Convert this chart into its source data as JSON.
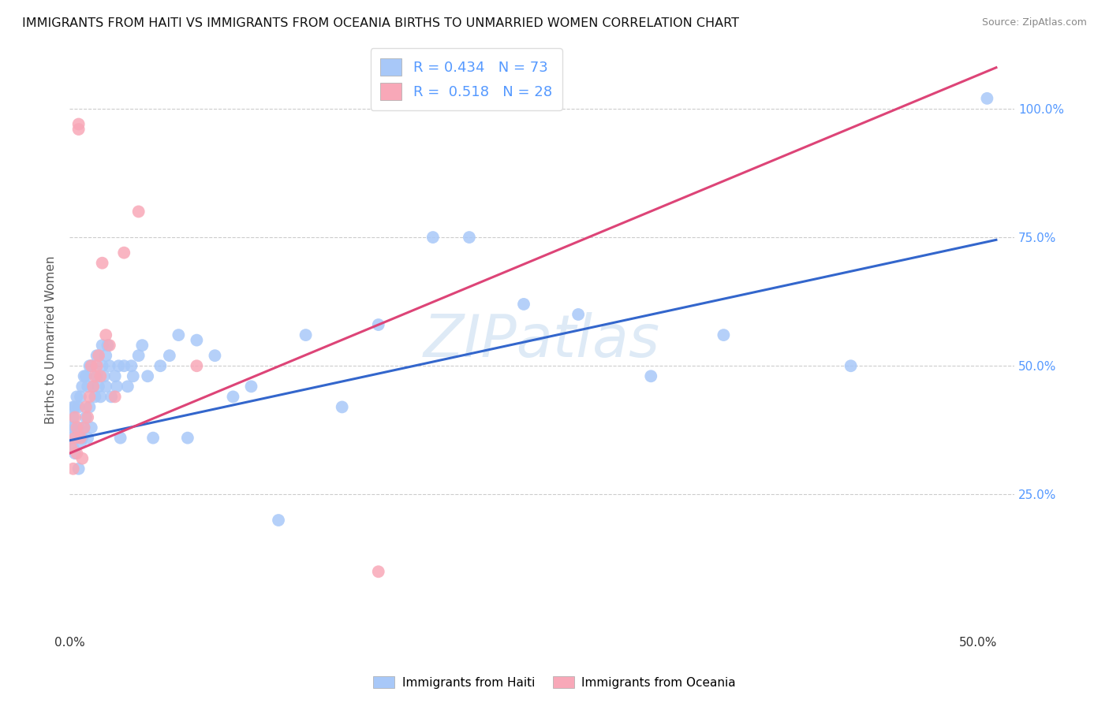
{
  "title": "IMMIGRANTS FROM HAITI VS IMMIGRANTS FROM OCEANIA BIRTHS TO UNMARRIED WOMEN CORRELATION CHART",
  "source": "Source: ZipAtlas.com",
  "ylabel_label": "Births to Unmarried Women",
  "xlim": [
    0.0,
    0.52
  ],
  "ylim": [
    -0.02,
    1.12
  ],
  "haiti_color": "#a8c8f8",
  "oceania_color": "#f8a8b8",
  "haiti_line_color": "#3366cc",
  "oceania_line_color": "#dd4477",
  "haiti_R": 0.434,
  "haiti_N": 73,
  "oceania_R": 0.518,
  "oceania_N": 28,
  "watermark": "ZIPatlas",
  "haiti_trendline_y0": 0.355,
  "haiti_trendline_y1": 0.745,
  "haiti_trendline_x0": 0.0,
  "haiti_trendline_x1": 0.51,
  "oceania_trendline_y0": 0.33,
  "oceania_trendline_y1": 1.08,
  "oceania_trendline_x0": 0.0,
  "oceania_trendline_x1": 0.51,
  "haiti_scatter_x": [
    0.001,
    0.001,
    0.002,
    0.002,
    0.002,
    0.003,
    0.003,
    0.003,
    0.004,
    0.004,
    0.005,
    0.005,
    0.005,
    0.006,
    0.006,
    0.007,
    0.007,
    0.008,
    0.008,
    0.009,
    0.009,
    0.01,
    0.01,
    0.011,
    0.011,
    0.012,
    0.012,
    0.013,
    0.014,
    0.015,
    0.015,
    0.016,
    0.017,
    0.018,
    0.018,
    0.019,
    0.02,
    0.02,
    0.021,
    0.022,
    0.023,
    0.025,
    0.026,
    0.027,
    0.028,
    0.03,
    0.032,
    0.034,
    0.035,
    0.038,
    0.04,
    0.043,
    0.046,
    0.05,
    0.055,
    0.06,
    0.065,
    0.07,
    0.08,
    0.09,
    0.1,
    0.115,
    0.13,
    0.15,
    0.17,
    0.2,
    0.22,
    0.25,
    0.28,
    0.32,
    0.36,
    0.43,
    0.505
  ],
  "haiti_scatter_y": [
    0.36,
    0.38,
    0.34,
    0.4,
    0.42,
    0.33,
    0.38,
    0.42,
    0.36,
    0.44,
    0.3,
    0.38,
    0.42,
    0.35,
    0.44,
    0.36,
    0.46,
    0.38,
    0.48,
    0.4,
    0.48,
    0.36,
    0.46,
    0.42,
    0.5,
    0.38,
    0.5,
    0.46,
    0.44,
    0.48,
    0.52,
    0.46,
    0.44,
    0.5,
    0.54,
    0.48,
    0.46,
    0.52,
    0.54,
    0.5,
    0.44,
    0.48,
    0.46,
    0.5,
    0.36,
    0.5,
    0.46,
    0.5,
    0.48,
    0.52,
    0.54,
    0.48,
    0.36,
    0.5,
    0.52,
    0.56,
    0.36,
    0.55,
    0.52,
    0.44,
    0.46,
    0.2,
    0.56,
    0.42,
    0.58,
    0.75,
    0.75,
    0.62,
    0.6,
    0.48,
    0.56,
    0.5,
    1.02
  ],
  "oceania_scatter_x": [
    0.001,
    0.002,
    0.003,
    0.003,
    0.004,
    0.004,
    0.005,
    0.005,
    0.006,
    0.007,
    0.008,
    0.009,
    0.01,
    0.011,
    0.012,
    0.013,
    0.014,
    0.015,
    0.016,
    0.017,
    0.018,
    0.02,
    0.022,
    0.025,
    0.03,
    0.038,
    0.07,
    0.17
  ],
  "oceania_scatter_y": [
    0.34,
    0.3,
    0.36,
    0.4,
    0.33,
    0.38,
    0.97,
    0.96,
    0.36,
    0.32,
    0.38,
    0.42,
    0.4,
    0.44,
    0.5,
    0.46,
    0.48,
    0.5,
    0.52,
    0.48,
    0.7,
    0.56,
    0.54,
    0.44,
    0.72,
    0.8,
    0.5,
    0.1
  ]
}
